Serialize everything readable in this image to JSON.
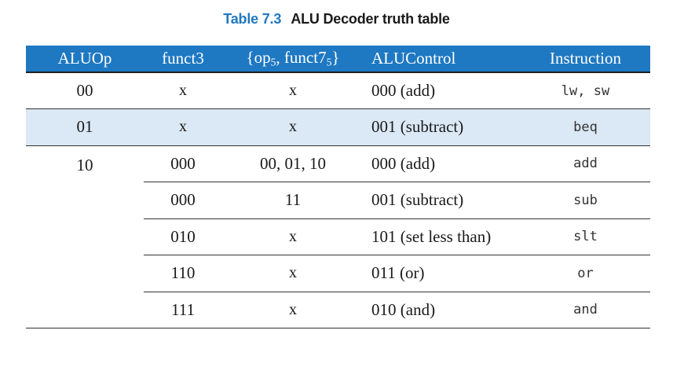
{
  "caption": {
    "number": "Table 7.3",
    "title": "ALU Decoder truth table"
  },
  "headers": {
    "aluop": "ALUOp",
    "funct3": "funct3",
    "op_funct7_open": "{op",
    "op_sub": "5",
    "op_funct7_mid": ", funct7",
    "funct7_sub": "5",
    "op_funct7_close": "}",
    "alucontrol": "ALUControl",
    "instruction": "Instruction"
  },
  "rows": [
    {
      "aluop": "00",
      "funct3": "x",
      "opf7": "x",
      "alucontrol": "000 (add)",
      "instruction": "lw, sw"
    },
    {
      "aluop": "01",
      "funct3": "x",
      "opf7": "x",
      "alucontrol": "001 (subtract)",
      "instruction": "beq"
    },
    {
      "aluop": "10",
      "funct3": "000",
      "opf7": "00, 01, 10",
      "alucontrol": "000 (add)",
      "instruction": "add"
    },
    {
      "aluop": "",
      "funct3": "000",
      "opf7": "11",
      "alucontrol": "001 (subtract)",
      "instruction": "sub"
    },
    {
      "aluop": "",
      "funct3": "010",
      "opf7": "x",
      "alucontrol": "101 (set less than)",
      "instruction": "slt"
    },
    {
      "aluop": "",
      "funct3": "110",
      "opf7": "x",
      "alucontrol": "011 (or)",
      "instruction": "or"
    },
    {
      "aluop": "",
      "funct3": "111",
      "opf7": "x",
      "alucontrol": "010 (and)",
      "instruction": "and"
    }
  ],
  "colors": {
    "header_bg": "#1e78c2",
    "caption_number": "#1f78c1",
    "highlight_row": "#dbe8f5"
  }
}
